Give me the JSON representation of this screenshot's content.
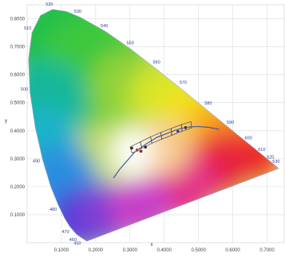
{
  "chart_data": {
    "type": "scatter",
    "title": "",
    "xlabel": "x",
    "ylabel": "y",
    "xlim": [
      0.0,
      0.75
    ],
    "ylim": [
      0.0,
      0.85
    ],
    "x_ticks": [
      "0.1000",
      "0.2000",
      "0.3000",
      "0.4000",
      "0.5000",
      "0.6000",
      "0.7000"
    ],
    "y_ticks": [
      "0.1000",
      "0.2000",
      "0.3000",
      "0.4000",
      "0.5000",
      "0.6000",
      "0.7000",
      "0.8000"
    ],
    "grid": true,
    "spectral_locus": [
      {
        "nm": 380,
        "x": 0.1741,
        "y": 0.005
      },
      {
        "nm": 460,
        "x": 0.144,
        "y": 0.0297
      },
      {
        "nm": 470,
        "x": 0.1241,
        "y": 0.0578
      },
      {
        "nm": 475,
        "x": 0.1096,
        "y": 0.0868
      },
      {
        "nm": 480,
        "x": 0.0913,
        "y": 0.1327
      },
      {
        "nm": 485,
        "x": 0.0687,
        "y": 0.2007
      },
      {
        "nm": 490,
        "x": 0.0454,
        "y": 0.295
      },
      {
        "nm": 495,
        "x": 0.0235,
        "y": 0.4127
      },
      {
        "nm": 500,
        "x": 0.0082,
        "y": 0.5384
      },
      {
        "nm": 505,
        "x": 0.0039,
        "y": 0.6548
      },
      {
        "nm": 510,
        "x": 0.0139,
        "y": 0.7502
      },
      {
        "nm": 515,
        "x": 0.0389,
        "y": 0.812
      },
      {
        "nm": 520,
        "x": 0.0743,
        "y": 0.8338
      },
      {
        "nm": 525,
        "x": 0.1142,
        "y": 0.8262
      },
      {
        "nm": 530,
        "x": 0.1547,
        "y": 0.8059
      },
      {
        "nm": 540,
        "x": 0.2296,
        "y": 0.7543
      },
      {
        "nm": 550,
        "x": 0.3016,
        "y": 0.6923
      },
      {
        "nm": 560,
        "x": 0.3731,
        "y": 0.6245
      },
      {
        "nm": 570,
        "x": 0.4441,
        "y": 0.5547
      },
      {
        "nm": 580,
        "x": 0.5125,
        "y": 0.4866
      },
      {
        "nm": 590,
        "x": 0.5752,
        "y": 0.4242
      },
      {
        "nm": 600,
        "x": 0.627,
        "y": 0.3725
      },
      {
        "nm": 610,
        "x": 0.6658,
        "y": 0.334
      },
      {
        "nm": 620,
        "x": 0.6915,
        "y": 0.3083
      },
      {
        "nm": 640,
        "x": 0.719,
        "y": 0.2809
      },
      {
        "nm": 700,
        "x": 0.7347,
        "y": 0.2653
      }
    ],
    "wavelength_labels": [
      {
        "text": "510",
        "x": 0.0139,
        "y": 0.7502
      },
      {
        "text": "520",
        "x": 0.0743,
        "y": 0.8338
      },
      {
        "text": "530",
        "x": 0.1547,
        "y": 0.8059
      },
      {
        "text": "540",
        "x": 0.2296,
        "y": 0.7543
      },
      {
        "text": "550",
        "x": 0.3016,
        "y": 0.6923
      },
      {
        "text": "560",
        "x": 0.3731,
        "y": 0.6245
      },
      {
        "text": "570",
        "x": 0.4441,
        "y": 0.5547
      },
      {
        "text": "580",
        "x": 0.5125,
        "y": 0.4866
      },
      {
        "text": "590",
        "x": 0.5752,
        "y": 0.4242
      },
      {
        "text": "600",
        "x": 0.627,
        "y": 0.3725
      },
      {
        "text": "610",
        "x": 0.6658,
        "y": 0.334
      },
      {
        "text": "620",
        "x": 0.6915,
        "y": 0.3083
      },
      {
        "text": "630",
        "x": 0.7079,
        "y": 0.292
      },
      {
        "text": "500",
        "x": 0.0082,
        "y": 0.5384
      },
      {
        "text": "490",
        "x": 0.0454,
        "y": 0.295
      },
      {
        "text": "480",
        "x": 0.0913,
        "y": 0.1327
      },
      {
        "text": "470",
        "x": 0.1241,
        "y": 0.0578
      },
      {
        "text": "460",
        "x": 0.144,
        "y": 0.0297
      },
      {
        "text": "450",
        "x": 0.1566,
        "y": 0.0177
      }
    ],
    "planckian_locus": [
      {
        "x": 0.252,
        "y": 0.231
      },
      {
        "x": 0.27,
        "y": 0.262
      },
      {
        "x": 0.29,
        "y": 0.29
      },
      {
        "x": 0.313,
        "y": 0.323
      },
      {
        "x": 0.345,
        "y": 0.351
      },
      {
        "x": 0.38,
        "y": 0.377
      },
      {
        "x": 0.41,
        "y": 0.391
      },
      {
        "x": 0.437,
        "y": 0.404
      },
      {
        "x": 0.46,
        "y": 0.411
      },
      {
        "x": 0.476,
        "y": 0.414
      },
      {
        "x": 0.5,
        "y": 0.415
      },
      {
        "x": 0.53,
        "y": 0.412
      },
      {
        "x": 0.56,
        "y": 0.405
      }
    ],
    "quadrangles": [
      [
        {
          "x": 0.3,
          "y": 0.342
        },
        {
          "x": 0.33,
          "y": 0.36
        },
        {
          "x": 0.335,
          "y": 0.338
        },
        {
          "x": 0.306,
          "y": 0.32
        }
      ],
      [
        {
          "x": 0.33,
          "y": 0.36
        },
        {
          "x": 0.36,
          "y": 0.378
        },
        {
          "x": 0.364,
          "y": 0.355
        },
        {
          "x": 0.335,
          "y": 0.338
        }
      ],
      [
        {
          "x": 0.36,
          "y": 0.378
        },
        {
          "x": 0.39,
          "y": 0.394
        },
        {
          "x": 0.393,
          "y": 0.37
        },
        {
          "x": 0.364,
          "y": 0.355
        }
      ],
      [
        {
          "x": 0.39,
          "y": 0.394
        },
        {
          "x": 0.42,
          "y": 0.408
        },
        {
          "x": 0.422,
          "y": 0.384
        },
        {
          "x": 0.393,
          "y": 0.37
        }
      ],
      [
        {
          "x": 0.42,
          "y": 0.408
        },
        {
          "x": 0.45,
          "y": 0.422
        },
        {
          "x": 0.452,
          "y": 0.398
        },
        {
          "x": 0.422,
          "y": 0.384
        }
      ],
      [
        {
          "x": 0.45,
          "y": 0.422
        },
        {
          "x": 0.478,
          "y": 0.432
        },
        {
          "x": 0.48,
          "y": 0.41
        },
        {
          "x": 0.452,
          "y": 0.398
        }
      ]
    ],
    "measurements": [
      {
        "x": 0.305,
        "y": 0.338,
        "color": "#333333"
      },
      {
        "x": 0.321,
        "y": 0.331,
        "color": "#c0392b"
      },
      {
        "x": 0.332,
        "y": 0.327,
        "color": "#7a3b2e"
      },
      {
        "x": 0.345,
        "y": 0.342,
        "color": "#333333"
      },
      {
        "x": 0.44,
        "y": 0.398,
        "color": "#2c3e8f"
      },
      {
        "x": 0.462,
        "y": 0.411,
        "color": "#333333"
      }
    ],
    "colors": {
      "planckian": "#3a4fa8",
      "quadrangle": "#333333",
      "wavelength_label": "#2c3f9a",
      "grid": "#d8dce2"
    }
  }
}
